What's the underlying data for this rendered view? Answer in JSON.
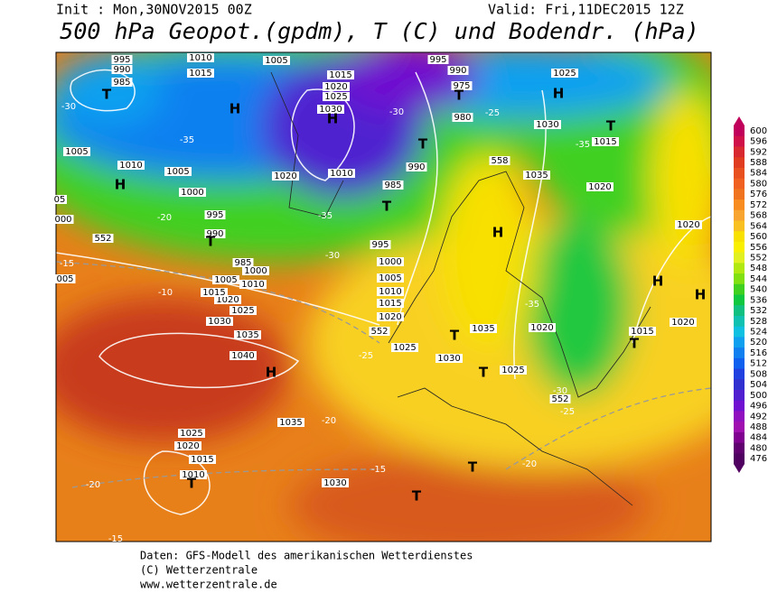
{
  "header": {
    "init": "Init : Mon,30NOV2015 00Z",
    "valid": "Valid: Fri,11DEC2015 12Z",
    "title": "500 hPa Geopot.(gpdm), T (C) und Bodendr. (hPa)"
  },
  "map": {
    "labels": [
      "995",
      "990",
      "985",
      "T",
      "1010",
      "1015",
      "H",
      "1005",
      "1015",
      "1020",
      "1025",
      "1030",
      "H",
      "995",
      "990",
      "975",
      "T",
      "980",
      "1025",
      "H",
      "1030",
      "T",
      "1015",
      "1005",
      "1010",
      "H",
      "1005",
      "1000",
      "995",
      "990",
      "T",
      "1020",
      "1010",
      "985",
      "990",
      "T",
      "1035",
      "1020",
      "T",
      "1020",
      "H",
      "995",
      "1000",
      "1005",
      "1010",
      "1015",
      "1020",
      "H",
      "H",
      "1020",
      "1015",
      "T",
      "1020",
      "1035",
      "T",
      "1025",
      "1030",
      "T",
      "1025",
      "1040",
      "H",
      "1035",
      "1030",
      "1025",
      "1020",
      "1015",
      "1010",
      "1005",
      "1000",
      "985",
      "1035",
      "1030",
      "1025",
      "1020",
      "1015",
      "1010",
      "T",
      "T",
      "T",
      "-30",
      "-35",
      "-20",
      "-15",
      "-10",
      "-25",
      "-20",
      "-15",
      "-20",
      "-20",
      "-15",
      "-30",
      "-25",
      "-35",
      "-35",
      "-30",
      "-35",
      "-30",
      "-25",
      "552",
      "552",
      "558",
      "552",
      "05",
      "000",
      "005"
    ]
  },
  "colorbar": {
    "ticks": [
      600,
      596,
      592,
      588,
      584,
      580,
      576,
      572,
      568,
      564,
      560,
      556,
      552,
      548,
      544,
      540,
      536,
      532,
      528,
      524,
      520,
      516,
      512,
      508,
      504,
      500,
      496,
      492,
      488,
      484,
      480,
      476
    ],
    "colors": [
      "#c0005a",
      "#d01048",
      "#d82830",
      "#e03c20",
      "#e85020",
      "#f06020",
      "#f07420",
      "#f88c20",
      "#f8a430",
      "#f8c020",
      "#f8e000",
      "#f8f000",
      "#e0f020",
      "#b0e810",
      "#80e010",
      "#40d020",
      "#10c840",
      "#10c080",
      "#10c0b0",
      "#10c0e0",
      "#10a0f0",
      "#1080f0",
      "#1060f0",
      "#2040e0",
      "#3030d0",
      "#5020d0",
      "#7010d0",
      "#9010c0",
      "#a010b0",
      "#800090",
      "#600070",
      "#500060"
    ]
  },
  "footer": {
    "lines": [
      "Daten: GFS-Modell des amerikanischen Wetterdienstes",
      "(C) Wetterzentrale",
      "www.wetterzentrale.de"
    ]
  }
}
